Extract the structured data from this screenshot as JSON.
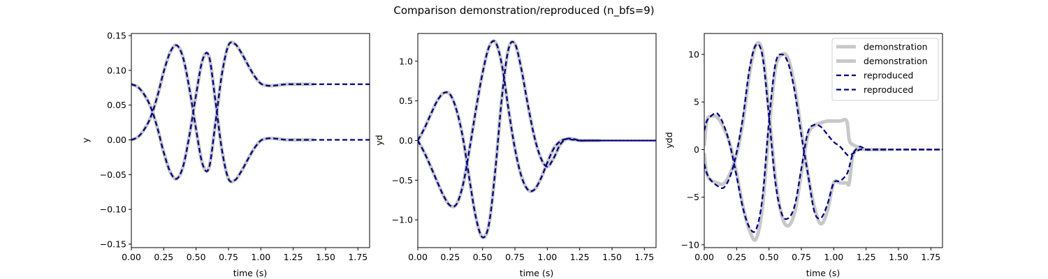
{
  "figure": {
    "title": "Comparison demonstration/reproduced  (n_bfs=9)"
  },
  "colors": {
    "demonstration": "#c8c8c8",
    "reproduced": "#00007f",
    "axes": "#000000",
    "background": "#ffffff",
    "legend_border": "#d0d0d0"
  },
  "chart_data": [
    {
      "type": "line",
      "panel": "y",
      "xlabel": "time (s)",
      "ylabel": "y",
      "xlim": [
        0,
        1.84
      ],
      "ylim": [
        -0.155,
        0.153
      ],
      "xticks": [
        0.0,
        0.25,
        0.5,
        0.75,
        1.0,
        1.25,
        1.5,
        1.75
      ],
      "xtick_labels": [
        "0.00",
        "0.25",
        "0.50",
        "0.75",
        "1.00",
        "1.25",
        "1.50",
        "1.75"
      ],
      "yticks": [
        -0.15,
        -0.1,
        -0.05,
        0.0,
        0.05,
        0.1,
        0.15
      ],
      "ytick_labels": [
        "−0.15",
        "−0.10",
        "−0.05",
        "0.00",
        "0.05",
        "0.10",
        "0.15"
      ],
      "grid": false,
      "x": [
        0.0,
        0.05,
        0.1,
        0.15,
        0.2,
        0.25,
        0.3,
        0.35,
        0.4,
        0.45,
        0.5,
        0.55,
        0.6,
        0.65,
        0.7,
        0.75,
        0.8,
        0.85,
        0.9,
        0.95,
        1.0,
        1.05,
        1.1,
        1.15,
        1.2,
        1.25,
        1.3,
        1.35,
        1.4,
        1.45,
        1.5,
        1.6,
        1.7,
        1.84
      ],
      "series": [
        {
          "name": "demonstration",
          "style": "demo",
          "values": [
            0.0,
            0.004,
            0.015,
            0.033,
            0.062,
            0.098,
            0.126,
            0.136,
            0.118,
            0.072,
            0.015,
            -0.035,
            -0.04,
            0.025,
            0.095,
            0.136,
            0.138,
            0.125,
            0.108,
            0.092,
            0.081,
            0.078,
            0.078,
            0.079,
            0.08,
            0.08,
            0.08,
            0.08,
            0.08,
            0.08,
            0.08,
            0.08,
            0.08,
            0.08
          ],
          "x_end": 1.4
        },
        {
          "name": "demonstration",
          "style": "demo",
          "values": [
            0.08,
            0.076,
            0.065,
            0.047,
            0.018,
            -0.018,
            -0.046,
            -0.056,
            -0.038,
            0.008,
            0.065,
            0.115,
            0.12,
            0.055,
            -0.015,
            -0.056,
            -0.058,
            -0.045,
            -0.028,
            -0.012,
            -0.001,
            0.002,
            0.002,
            0.001,
            0.0,
            0.0,
            0.0,
            0.0,
            0.0,
            0.0,
            0.0,
            0.0,
            0.0,
            0.0
          ],
          "x_end": 1.4
        },
        {
          "name": "reproduced",
          "style": "repro",
          "values": [
            0.0,
            0.004,
            0.015,
            0.033,
            0.062,
            0.098,
            0.126,
            0.136,
            0.118,
            0.072,
            0.015,
            -0.035,
            -0.04,
            0.025,
            0.095,
            0.136,
            0.138,
            0.125,
            0.108,
            0.092,
            0.081,
            0.078,
            0.078,
            0.079,
            0.08,
            0.08,
            0.08,
            0.08,
            0.08,
            0.08,
            0.08,
            0.08,
            0.08,
            0.08
          ]
        },
        {
          "name": "reproduced",
          "style": "repro",
          "values": [
            0.08,
            0.076,
            0.065,
            0.047,
            0.018,
            -0.018,
            -0.046,
            -0.056,
            -0.038,
            0.008,
            0.065,
            0.115,
            0.12,
            0.055,
            -0.015,
            -0.056,
            -0.058,
            -0.045,
            -0.028,
            -0.012,
            -0.001,
            0.002,
            0.002,
            0.001,
            0.0,
            0.0,
            0.0,
            0.0,
            0.0,
            0.0,
            0.0,
            0.0,
            0.0,
            0.0
          ]
        }
      ]
    },
    {
      "type": "line",
      "panel": "yd",
      "xlabel": "time (s)",
      "ylabel": "yd",
      "xlim": [
        0,
        1.84
      ],
      "ylim": [
        -1.35,
        1.35
      ],
      "xticks": [
        0.0,
        0.25,
        0.5,
        0.75,
        1.0,
        1.25,
        1.5,
        1.75
      ],
      "xtick_labels": [
        "0.00",
        "0.25",
        "0.50",
        "0.75",
        "1.00",
        "1.25",
        "1.50",
        "1.75"
      ],
      "yticks": [
        -1.0,
        -0.5,
        0.0,
        0.5,
        1.0
      ],
      "ytick_labels": [
        "−1.0",
        "−0.5",
        "0.0",
        "0.5",
        "1.0"
      ],
      "grid": false,
      "x": [
        0.0,
        0.05,
        0.1,
        0.15,
        0.2,
        0.25,
        0.3,
        0.35,
        0.4,
        0.45,
        0.5,
        0.55,
        0.6,
        0.65,
        0.7,
        0.75,
        0.8,
        0.85,
        0.9,
        0.95,
        1.0,
        1.05,
        1.1,
        1.15,
        1.2,
        1.25,
        1.3,
        1.35,
        1.4,
        1.45,
        1.5,
        1.6,
        1.7,
        1.84
      ],
      "series": [
        {
          "name": "demonstration",
          "style": "demo",
          "values": [
            0.0,
            0.15,
            0.33,
            0.5,
            0.6,
            0.58,
            0.38,
            0.02,
            -0.5,
            -0.98,
            -1.22,
            -1.05,
            -0.35,
            0.55,
            1.15,
            1.22,
            0.9,
            0.45,
            0.05,
            -0.22,
            -0.33,
            -0.22,
            -0.05,
            0.02,
            0.02,
            0.0,
            0.0,
            0.0,
            0.0,
            0.0,
            0.0,
            0.0,
            0.0,
            0.0
          ],
          "x_end": 1.4
        },
        {
          "name": "demonstration",
          "style": "demo",
          "values": [
            0.0,
            -0.15,
            -0.33,
            -0.52,
            -0.7,
            -0.82,
            -0.8,
            -0.55,
            -0.1,
            0.4,
            0.85,
            1.18,
            1.24,
            0.95,
            0.4,
            -0.1,
            -0.45,
            -0.62,
            -0.62,
            -0.48,
            -0.28,
            -0.1,
            -0.01,
            0.02,
            0.01,
            0.0,
            0.0,
            0.0,
            0.0,
            0.0,
            0.0,
            0.0,
            0.0,
            0.0
          ],
          "x_end": 1.4
        },
        {
          "name": "reproduced",
          "style": "repro",
          "values": [
            0.0,
            0.15,
            0.33,
            0.5,
            0.6,
            0.58,
            0.38,
            0.02,
            -0.5,
            -0.98,
            -1.22,
            -1.05,
            -0.35,
            0.55,
            1.15,
            1.22,
            0.9,
            0.45,
            0.05,
            -0.22,
            -0.33,
            -0.22,
            -0.05,
            0.02,
            0.02,
            0.0,
            0.0,
            0.0,
            0.0,
            0.0,
            0.0,
            0.0,
            0.0,
            0.0
          ]
        },
        {
          "name": "reproduced",
          "style": "repro",
          "values": [
            0.0,
            -0.15,
            -0.33,
            -0.52,
            -0.7,
            -0.82,
            -0.8,
            -0.55,
            -0.1,
            0.4,
            0.85,
            1.18,
            1.24,
            0.95,
            0.4,
            -0.1,
            -0.45,
            -0.62,
            -0.62,
            -0.48,
            -0.28,
            -0.1,
            -0.01,
            0.02,
            0.01,
            0.0,
            0.0,
            0.0,
            0.0,
            0.0,
            0.0,
            0.0,
            0.0,
            0.0
          ]
        }
      ]
    },
    {
      "type": "line",
      "panel": "ydd",
      "xlabel": "time (s)",
      "ylabel": "ydd",
      "xlim": [
        0,
        1.84
      ],
      "ylim": [
        -10.3,
        12.2
      ],
      "xticks": [
        0.0,
        0.25,
        0.5,
        0.75,
        1.0,
        1.25,
        1.5,
        1.75
      ],
      "xtick_labels": [
        "0.00",
        "0.25",
        "0.50",
        "0.75",
        "1.00",
        "1.25",
        "1.50",
        "1.75"
      ],
      "yticks": [
        -10,
        -5,
        0,
        5,
        10
      ],
      "ytick_labels": [
        "−10",
        "−5",
        "0",
        "5",
        "10"
      ],
      "grid": false,
      "legend": {
        "position": "top-right",
        "entries": [
          "demonstration",
          "demonstration",
          "reproduced",
          "reproduced"
        ]
      },
      "x": [
        0.0,
        0.02,
        0.05,
        0.1,
        0.15,
        0.2,
        0.25,
        0.3,
        0.35,
        0.4,
        0.45,
        0.5,
        0.55,
        0.6,
        0.65,
        0.7,
        0.75,
        0.8,
        0.85,
        0.9,
        0.95,
        1.0,
        1.05,
        1.1,
        1.12,
        1.15,
        1.2,
        1.25,
        1.3,
        1.35,
        1.4,
        1.5,
        1.6,
        1.84
      ],
      "series": [
        {
          "name": "demonstration",
          "style": "demo",
          "values": [
            0.5,
            3.0,
            3.5,
            3.4,
            2.3,
            0.5,
            -2.5,
            -6.0,
            -8.5,
            -9.4,
            -6.0,
            2.0,
            8.5,
            10.0,
            9.5,
            6.5,
            2.0,
            -2.5,
            -6.0,
            -7.8,
            -6.5,
            -3.5,
            -3.5,
            -3.5,
            -3.5,
            -0.5,
            0.0,
            0.0,
            0.0,
            0.0,
            0.0,
            0.0,
            0.0,
            0.0
          ],
          "x_end": 1.45
        },
        {
          "name": "demonstration",
          "style": "demo",
          "values": [
            -0.5,
            -2.5,
            -3.2,
            -3.5,
            -3.6,
            -2.5,
            -0.5,
            3.0,
            8.0,
            11.0,
            10.2,
            4.0,
            -3.0,
            -7.0,
            -8.0,
            -6.5,
            -2.5,
            1.5,
            2.5,
            2.8,
            3.0,
            3.0,
            3.0,
            3.0,
            1.0,
            0.5,
            0.2,
            0.0,
            0.0,
            0.0,
            0.0,
            0.0,
            0.0,
            0.0
          ],
          "x_end": 1.45
        },
        {
          "name": "reproduced",
          "style": "repro",
          "values": [
            2.0,
            3.0,
            3.5,
            3.8,
            2.6,
            0.4,
            -2.8,
            -6.2,
            -8.2,
            -8.4,
            -5.0,
            3.0,
            9.0,
            10.0,
            9.0,
            6.0,
            1.5,
            -2.5,
            -6.5,
            -7.2,
            -5.8,
            -3.5,
            -3.3,
            -2.6,
            -1.8,
            -0.4,
            0.3,
            0.0,
            0.0,
            0.0,
            0.0,
            0.0,
            0.0,
            0.0
          ]
        },
        {
          "name": "reproduced",
          "style": "repro",
          "values": [
            -1.5,
            -2.5,
            -3.2,
            -3.8,
            -4.0,
            -2.8,
            -0.3,
            3.5,
            8.5,
            11.0,
            9.8,
            3.5,
            -3.5,
            -6.8,
            -7.2,
            -5.8,
            -2.0,
            1.8,
            2.6,
            2.4,
            1.6,
            0.8,
            0.3,
            -0.5,
            -0.6,
            -0.4,
            0.0,
            0.0,
            0.0,
            0.0,
            0.0,
            0.0,
            0.0,
            0.0
          ]
        }
      ]
    }
  ]
}
